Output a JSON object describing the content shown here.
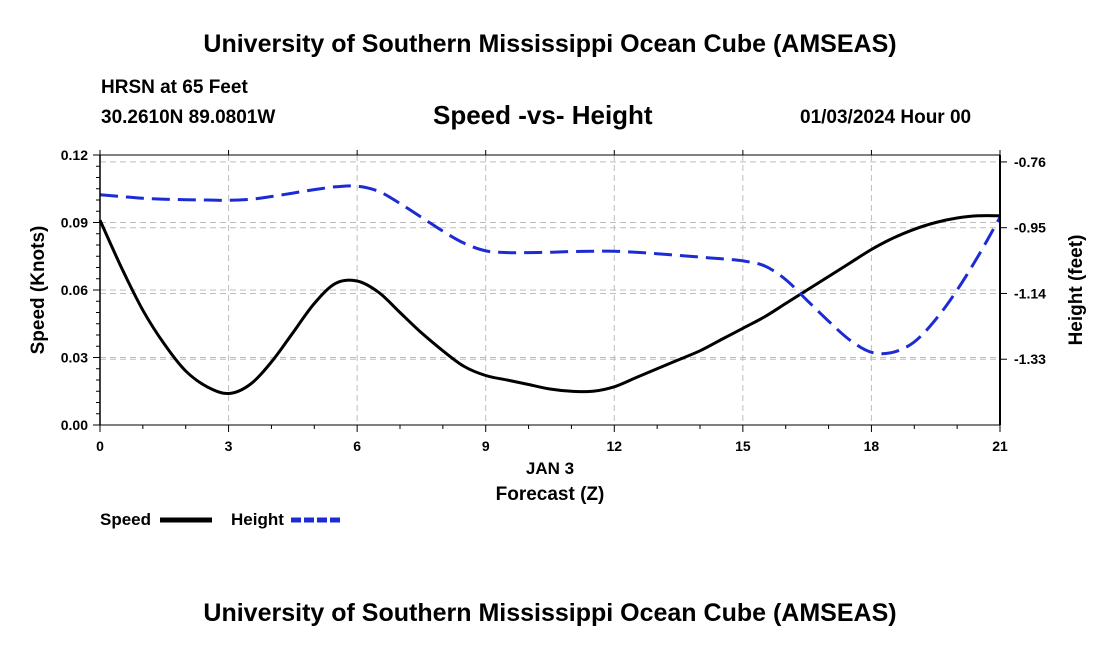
{
  "header": {
    "title": "University of Southern Mississippi Ocean Cube (AMSEAS)",
    "station": "HRSN at 65 Feet",
    "coordinates": "30.2610N  89.0801W",
    "subtitle": "Speed -vs- Height",
    "datetime": "01/03/2024 Hour 00"
  },
  "footer": {
    "title": "University of Southern Mississippi Ocean Cube (AMSEAS)"
  },
  "chart_data": {
    "type": "line",
    "title": "Speed -vs- Height",
    "xlabel": "Forecast (Z)",
    "xdate": "JAN 3",
    "ylabel": "Speed (Knots)",
    "y2label": "Height (feet)",
    "xlim": [
      0,
      21
    ],
    "ylim": [
      0,
      0.12
    ],
    "y2lim": [
      -1.52,
      -0.74
    ],
    "xticks": [
      "0",
      "3",
      "6",
      "9",
      "12",
      "15",
      "18",
      "21"
    ],
    "yticks": [
      "0.00",
      "0.03",
      "0.06",
      "0.09",
      "0.12"
    ],
    "y2ticks": [
      "-0.76",
      "-0.95",
      "-1.14",
      "-1.33"
    ],
    "grid": true,
    "legend_position": "bottom-left",
    "series": [
      {
        "name": "Speed",
        "axis": "left",
        "style": "solid",
        "color": "#000000",
        "x": [
          0,
          0.5,
          1,
          1.5,
          2,
          2.5,
          3,
          3.5,
          4,
          4.5,
          5,
          5.5,
          6,
          6.5,
          7,
          7.5,
          8,
          8.5,
          9,
          9.5,
          10,
          10.5,
          11,
          11.5,
          12,
          12.5,
          13,
          13.5,
          14,
          14.5,
          15,
          15.5,
          16,
          16.5,
          17,
          17.5,
          18,
          18.5,
          19,
          19.5,
          20,
          20.5,
          21
        ],
        "values": [
          0.091,
          0.07,
          0.051,
          0.036,
          0.024,
          0.017,
          0.014,
          0.018,
          0.028,
          0.041,
          0.054,
          0.063,
          0.064,
          0.059,
          0.05,
          0.041,
          0.033,
          0.026,
          0.022,
          0.02,
          0.018,
          0.016,
          0.015,
          0.015,
          0.017,
          0.021,
          0.025,
          0.029,
          0.033,
          0.038,
          0.043,
          0.048,
          0.054,
          0.06,
          0.066,
          0.072,
          0.078,
          0.083,
          0.087,
          0.09,
          0.092,
          0.093,
          0.093
        ]
      },
      {
        "name": "Height",
        "axis": "right",
        "style": "dashed",
        "color": "#1c2bd4",
        "x": [
          0,
          0.5,
          1,
          1.5,
          2,
          2.5,
          3,
          3.5,
          4,
          4.5,
          5,
          5.5,
          6,
          6.5,
          7,
          7.5,
          8,
          8.5,
          9,
          9.5,
          10,
          10.5,
          11,
          11.5,
          12,
          12.5,
          13,
          13.5,
          14,
          14.5,
          15,
          15.5,
          16,
          16.5,
          17,
          17.5,
          18,
          18.5,
          19,
          19.5,
          20,
          20.5,
          21
        ],
        "values": [
          -0.855,
          -0.86,
          -0.865,
          -0.868,
          -0.869,
          -0.87,
          -0.871,
          -0.868,
          -0.86,
          -0.85,
          -0.84,
          -0.832,
          -0.83,
          -0.845,
          -0.88,
          -0.92,
          -0.96,
          -0.995,
          -1.017,
          -1.022,
          -1.022,
          -1.021,
          -1.019,
          -1.018,
          -1.018,
          -1.021,
          -1.025,
          -1.03,
          -1.035,
          -1.04,
          -1.046,
          -1.06,
          -1.1,
          -1.16,
          -1.22,
          -1.275,
          -1.31,
          -1.31,
          -1.28,
          -1.215,
          -1.13,
          -1.03,
          -0.92
        ]
      }
    ]
  },
  "legend": {
    "items": [
      {
        "label": "Speed",
        "color": "#000000",
        "style": "solid"
      },
      {
        "label": "Height",
        "color": "#1c2bd4",
        "style": "dashed"
      }
    ]
  }
}
